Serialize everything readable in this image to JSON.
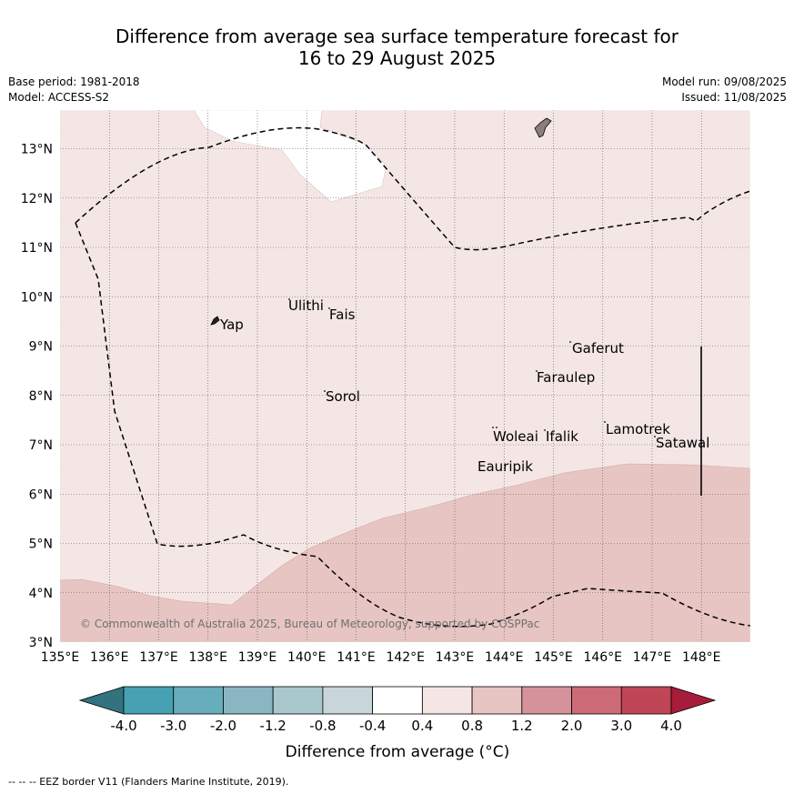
{
  "title": {
    "line1": "Difference from average sea surface temperature forecast for",
    "line2": "16 to 29 August 2025"
  },
  "meta": {
    "base_period": "Base period: 1981-2018",
    "model": "Model: ACCESS-S2",
    "model_run": "Model run: 09/08/2025",
    "issued": "Issued: 11/08/2025"
  },
  "map": {
    "lon_labels": [
      "135°E",
      "136°E",
      "137°E",
      "138°E",
      "139°E",
      "140°E",
      "141°E",
      "142°E",
      "143°E",
      "144°E",
      "145°E",
      "146°E",
      "147°E",
      "148°E"
    ],
    "lat_labels": [
      "13°N",
      "12°N",
      "11°N",
      "10°N",
      "9°N",
      "8°N",
      "7°N",
      "6°N",
      "5°N",
      "4°N",
      "3°N"
    ],
    "places": {
      "ulithi": "Ulithi",
      "fais": "Fais",
      "yap": "Yap",
      "gaferut": "Gaferut",
      "faraulep": "Faraulep",
      "sorol": "Sorol",
      "lamotrek": "Lamotrek",
      "woleai": "Woleai",
      "ifalik": "Ifalik",
      "satawal": "Satawal",
      "eauripik": "Eauripik"
    },
    "copyright": "© Commonwealth of Australia 2025, Bureau of Meteorology, supported by COSPPac",
    "colors": {
      "band_0_4_to_0_8": "#f4e6e5",
      "band_0_8_to_1_2": "#e7c5c2",
      "land": "#8c7d7d",
      "neutral": "#ffffff"
    }
  },
  "colorbar": {
    "ticks": [
      "-4.0",
      "-3.0",
      "-2.0",
      "-1.2",
      "-0.8",
      "-0.4",
      "0.4",
      "0.8",
      "1.2",
      "2.0",
      "3.0",
      "4.0"
    ],
    "colors": [
      "#33737f",
      "#46a2b3",
      "#68adbb",
      "#89b6c1",
      "#a9c8cd",
      "#c8d5d9",
      "#ffffff",
      "#f4e6e5",
      "#e7c5c2",
      "#d6929a",
      "#cc6b76",
      "#c04556",
      "#a71c3a"
    ],
    "label": "Difference from average (°C)"
  },
  "footnote": "--  --  -- EEZ border V11 (Flanders Marine Institute, 2019)."
}
